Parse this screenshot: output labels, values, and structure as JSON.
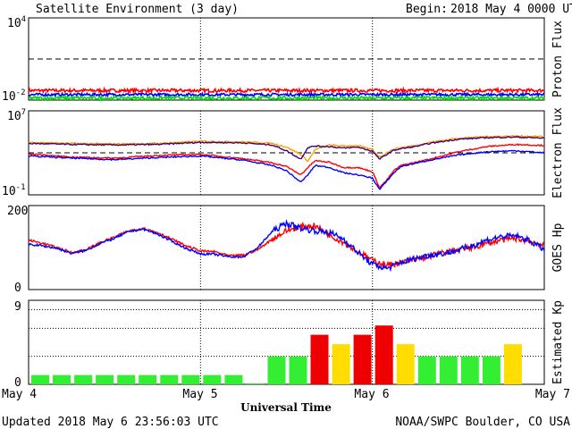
{
  "header": {
    "title": "Satellite Environment (3 day)",
    "begin_label": "Begin:",
    "begin_value": "2018 May 4 0000 UTC"
  },
  "footer": {
    "updated": "Updated 2018 May  6 23:56:03 UTC",
    "credit": "NOAA/SWPC Boulder, CO USA"
  },
  "chart_data": [
    {
      "type": "line",
      "panel": "proton",
      "ylabel": "Proton Flux",
      "yscale": "log",
      "y_tick_labels": [
        "10^4",
        "10^-2"
      ],
      "ylim_exp": [
        -2,
        4
      ],
      "threshold_exp": 1,
      "series": [
        {
          "color": "#ff0000",
          "level_exp": -1.3,
          "noise_exp": 0.12
        },
        {
          "color": "#0000ff",
          "level_exp": -1.6,
          "noise_exp": 0.1
        },
        {
          "color": "#00dd00",
          "level_exp": -1.85,
          "noise_exp": 0.12
        }
      ]
    },
    {
      "type": "line",
      "panel": "electron",
      "ylabel": "Electron Flux",
      "yscale": "log",
      "y_tick_labels": [
        "10^7",
        "10^-1"
      ],
      "ylim_exp": [
        -1,
        7
      ],
      "threshold_exp": 3,
      "x_hours": [
        0,
        6,
        12,
        18,
        24,
        30,
        34,
        36,
        38,
        39,
        40,
        42,
        44,
        46,
        48,
        49,
        50,
        51,
        52,
        54,
        56,
        60,
        64,
        68,
        72
      ],
      "series": [
        {
          "color": "#ffa000",
          "values": [
            4.0,
            3.9,
            3.85,
            3.9,
            4.1,
            4.05,
            3.9,
            3.55,
            2.85,
            2.2,
            3.3,
            3.75,
            3.65,
            3.7,
            3.3,
            2.6,
            3.0,
            3.35,
            3.5,
            3.7,
            4.0,
            4.4,
            4.55,
            4.6,
            4.55
          ]
        },
        {
          "color": "#400080",
          "values": [
            3.9,
            3.8,
            3.75,
            3.8,
            4.0,
            3.95,
            3.75,
            3.2,
            2.4,
            3.5,
            3.65,
            3.6,
            3.45,
            3.55,
            3.15,
            2.4,
            2.85,
            3.25,
            3.4,
            3.6,
            3.9,
            4.3,
            4.45,
            4.5,
            4.4
          ]
        },
        {
          "color": "#ff0000",
          "values": [
            2.9,
            2.6,
            2.5,
            2.75,
            2.85,
            2.45,
            2.05,
            1.7,
            0.9,
            1.6,
            2.25,
            2.1,
            1.6,
            1.6,
            1.2,
            -0.3,
            0.4,
            1.3,
            1.8,
            2.1,
            2.4,
            3.1,
            3.6,
            3.8,
            3.7
          ]
        },
        {
          "color": "#0000ff",
          "values": [
            2.7,
            2.5,
            2.35,
            2.55,
            2.7,
            2.3,
            1.8,
            1.3,
            0.2,
            0.9,
            1.8,
            1.6,
            1.1,
            0.9,
            0.6,
            -0.5,
            0.3,
            1.1,
            1.7,
            2.0,
            2.3,
            2.8,
            3.1,
            3.2,
            3.0
          ]
        }
      ]
    },
    {
      "type": "line",
      "panel": "goes_hp",
      "ylabel": "GOES Hp",
      "yticks": [
        0,
        200
      ],
      "ylim": [
        0,
        200
      ],
      "x_hours": [
        0,
        2,
        4,
        6,
        8,
        10,
        12,
        14,
        16,
        18,
        20,
        22,
        24,
        26,
        28,
        30,
        32,
        34,
        36,
        38,
        40,
        42,
        44,
        46,
        48,
        50,
        52,
        54,
        56,
        58,
        60,
        62,
        64,
        66,
        68,
        70,
        72
      ],
      "series": [
        {
          "color": "#ff0000",
          "values": [
            118,
            110,
            100,
            88,
            95,
            112,
            125,
            140,
            146,
            136,
            120,
            104,
            92,
            90,
            80,
            82,
            95,
            120,
            140,
            150,
            152,
            130,
            112,
            90,
            70,
            58,
            64,
            72,
            80,
            88,
            95,
            100,
            110,
            118,
            122,
            115,
            105
          ]
        },
        {
          "color": "#0000ff",
          "values": [
            108,
            104,
            98,
            86,
            93,
            110,
            122,
            138,
            144,
            132,
            115,
            98,
            85,
            84,
            78,
            78,
            100,
            138,
            158,
            146,
            140,
            136,
            120,
            88,
            60,
            50,
            64,
            74,
            82,
            86,
            94,
            105,
            118,
            126,
            128,
            116,
            95
          ]
        }
      ]
    },
    {
      "type": "bar",
      "panel": "kp",
      "ylabel": "Estimated Kp",
      "yticks": [
        0,
        9
      ],
      "ylim": [
        0,
        9
      ],
      "bar_hours": 3,
      "values": [
        1,
        1,
        1,
        1,
        1,
        1,
        1,
        1,
        1,
        1,
        0.1,
        3,
        3,
        5.3,
        4.3,
        5.3,
        6.3,
        4.3,
        3,
        3,
        3,
        3,
        4.3,
        0
      ],
      "colors": {
        "quiet": "#33ee33",
        "active": "#ffdd00",
        "storm": "#ee0000"
      },
      "xlabel": "Universal Time",
      "x_tick_labels": [
        "May 4",
        "May 5",
        "May 6",
        "May 7"
      ]
    }
  ]
}
